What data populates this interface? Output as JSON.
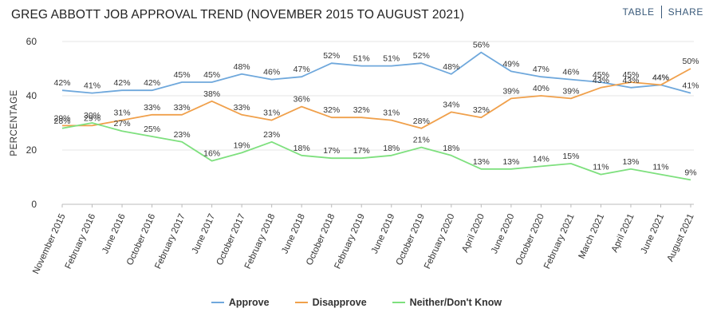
{
  "header": {
    "title": "GREG ABBOTT JOB APPROVAL TREND (NOVEMBER 2015 TO AUGUST 2021)",
    "table_label": "TABLE",
    "share_label": "SHARE"
  },
  "chart_data": {
    "type": "line",
    "title": "GREG ABBOTT JOB APPROVAL TREND (NOVEMBER 2015 TO AUGUST 2021)",
    "xlabel": "",
    "ylabel": "PERCENTAGE",
    "ylim": [
      0,
      60
    ],
    "yticks": [
      0,
      20,
      40,
      60
    ],
    "grid": true,
    "legend_position": "bottom",
    "categories": [
      "November 2015",
      "February 2016",
      "June 2016",
      "October 2016",
      "February 2017",
      "June 2017",
      "October 2017",
      "February 2018",
      "June 2018",
      "October 2018",
      "February 2019",
      "June 2019",
      "October 2019",
      "February 2020",
      "April 2020",
      "June 2020",
      "October 2020",
      "February 2021",
      "March 2021",
      "April 2021",
      "June 2021",
      "August 2021"
    ],
    "series": [
      {
        "name": "Approve",
        "color": "#6fa8dc",
        "values": [
          42,
          41,
          42,
          42,
          45,
          45,
          48,
          46,
          47,
          52,
          51,
          51,
          52,
          48,
          56,
          49,
          47,
          46,
          45,
          43,
          44,
          41
        ]
      },
      {
        "name": "Disapprove",
        "color": "#f0a04b",
        "values": [
          29,
          29,
          31,
          33,
          33,
          38,
          33,
          31,
          36,
          32,
          32,
          31,
          28,
          34,
          32,
          39,
          40,
          39,
          43,
          45,
          44,
          50
        ]
      },
      {
        "name": "Neither/Don't Know",
        "color": "#7ee07e",
        "values": [
          28,
          30,
          27,
          25,
          23,
          16,
          19,
          23,
          18,
          17,
          17,
          18,
          21,
          18,
          13,
          13,
          14,
          15,
          11,
          13,
          11,
          9
        ]
      }
    ]
  }
}
